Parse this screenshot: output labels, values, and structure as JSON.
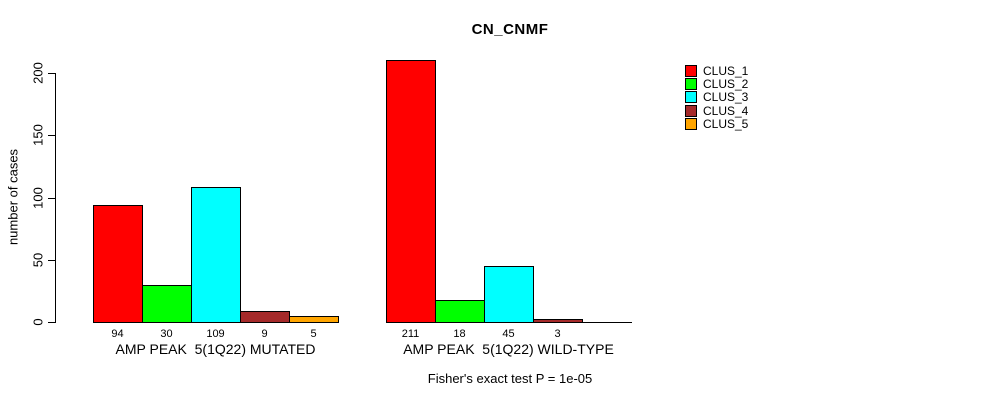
{
  "title": "CN_CNMF",
  "chart_data": {
    "type": "bar",
    "title": "CN_CNMF",
    "ylabel": "number of cases",
    "ylim": [
      0,
      200
    ],
    "yticks": [
      0,
      50,
      100,
      150,
      200
    ],
    "grid": false,
    "legend_position": "top-right",
    "categories": [
      "AMP PEAK  5(1Q22) MUTATED",
      "AMP PEAK  5(1Q22) WILD-TYPE"
    ],
    "series": [
      {
        "name": "CLUS_1",
        "color": "#ff0000",
        "values": [
          94,
          211
        ]
      },
      {
        "name": "CLUS_2",
        "color": "#00ff00",
        "values": [
          30,
          18
        ]
      },
      {
        "name": "CLUS_3",
        "color": "#00ffff",
        "values": [
          109,
          45
        ]
      },
      {
        "name": "CLUS_4",
        "color": "#a52a2a",
        "values": [
          9,
          3
        ]
      },
      {
        "name": "CLUS_5",
        "color": "#ffa500",
        "values": [
          5,
          0
        ]
      }
    ],
    "bar_value_labels": [
      [
        "94",
        "30",
        "109",
        "9",
        "5"
      ],
      [
        "211",
        "18",
        "45",
        "3",
        ""
      ]
    ],
    "annotation": "Fisher's exact test P = 1e-05",
    "axis_color": "#000000",
    "text_color": "#000000",
    "background": "#ffffff"
  }
}
